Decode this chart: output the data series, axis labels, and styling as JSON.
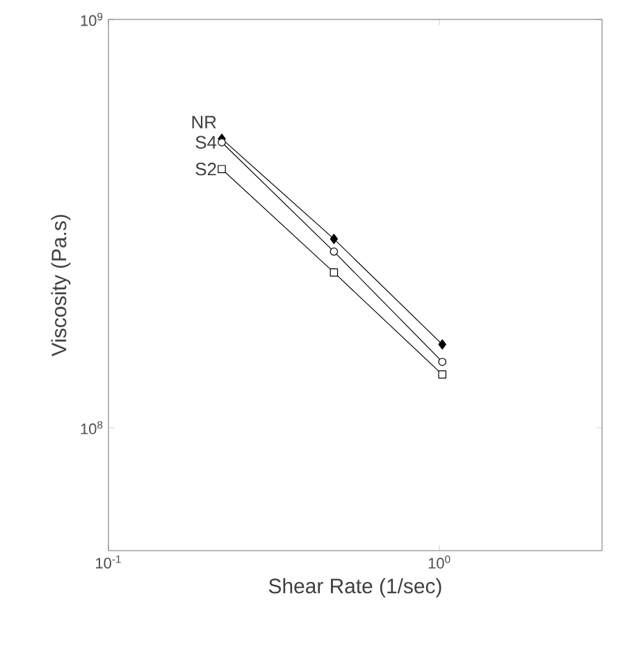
{
  "chart_data": {
    "type": "line",
    "xlabel": "Shear Rate (1/sec)",
    "ylabel": "Viscosity (Pa.s)",
    "log": "xy",
    "x": [
      0.22,
      0.48,
      1.02
    ],
    "series": [
      {
        "name": "NR",
        "color": "#000000",
        "marker": "diamond",
        "values": [
          510000000.0,
          290000000.0,
          160000000.0
        ]
      },
      {
        "name": "S4",
        "color": "#000000",
        "marker": "circle",
        "values": [
          500000000.0,
          270000000.0,
          145000000.0
        ]
      },
      {
        "name": "S2",
        "color": "#000000",
        "marker": "square",
        "values": [
          430000000.0,
          240000000.0,
          135000000.0
        ]
      }
    ],
    "xlim": [
      0.1,
      3.1
    ],
    "ylim": [
      50000000.0,
      1000000000.0
    ],
    "xticks": [
      {
        "value": 0.1,
        "label": "10$^{-1}$"
      },
      {
        "value": 1,
        "label": "10$^{0}$"
      }
    ],
    "yticks": [
      {
        "value": 100000000.0,
        "label": "10$^{8}$"
      },
      {
        "value": 1000000000.0,
        "label": "10$^{9}$"
      }
    ],
    "grid": false,
    "legend": false,
    "line_style": "solid"
  }
}
